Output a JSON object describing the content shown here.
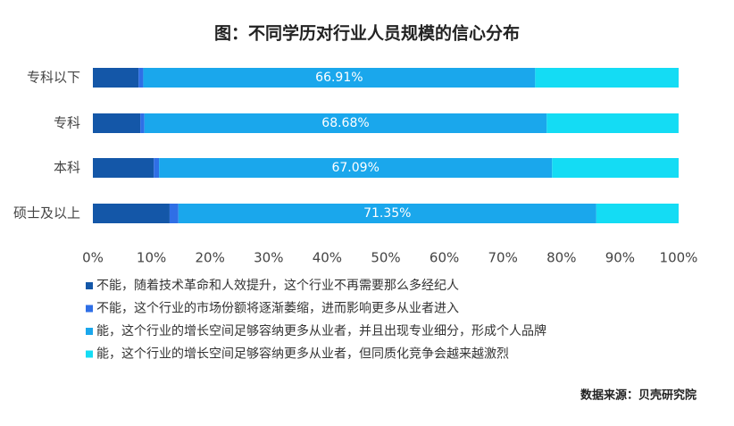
{
  "chart_data": {
    "type": "stacked_barh",
    "title": "图：不同学历对行业人员规模的信心分布",
    "categories": [
      "专科以下",
      "专科",
      "本科",
      "硕士及以上"
    ],
    "series": [
      {
        "name": "不能，随着技术革命和人效提升，这个行业不再需要那么多经纪人",
        "color": "#1457a8",
        "values": [
          7.8,
          8.1,
          10.4,
          13.1
        ]
      },
      {
        "name": "不能，这个行业的市场份额将逐渐萎缩，进而影响更多从业者进入",
        "color": "#2f6fe6",
        "values": [
          0.8,
          0.7,
          0.9,
          1.5
        ]
      },
      {
        "name": "能，这个行业的增长空间足够容纳更多从业者，并且出现专业细分，形成个人品牌",
        "color": "#1aa7ec",
        "values": [
          66.91,
          68.68,
          67.09,
          71.35
        ],
        "value_labels": [
          "66.91%",
          "68.68%",
          "67.09%",
          "71.35%"
        ]
      },
      {
        "name": "能，这个行业的增长空间足够容纳更多从业者，但同质化竞争会越来越激烈",
        "color": "#14dcf4",
        "values": [
          24.49,
          22.51,
          21.61,
          14.05
        ]
      }
    ],
    "xlim": [
      0,
      100
    ],
    "xticks": [
      {
        "value": 0,
        "label": "0%"
      },
      {
        "value": 10,
        "label": "10%"
      },
      {
        "value": 20,
        "label": "20%"
      },
      {
        "value": 30,
        "label": "30%"
      },
      {
        "value": 40,
        "label": "40%"
      },
      {
        "value": 50,
        "label": "50%"
      },
      {
        "value": 60,
        "label": "60%"
      },
      {
        "value": 70,
        "label": "70%"
      },
      {
        "value": 80,
        "label": "80%"
      },
      {
        "value": 90,
        "label": "90%"
      },
      {
        "value": 100,
        "label": "100%"
      }
    ],
    "source": "数据来源：贝壳研究院"
  }
}
